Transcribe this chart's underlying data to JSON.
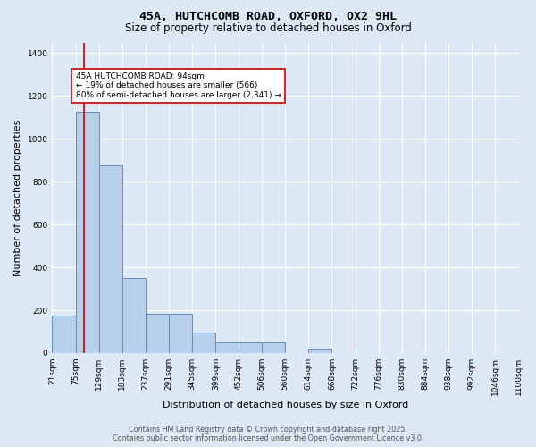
{
  "title_line1": "45A, HUTCHCOMB ROAD, OXFORD, OX2 9HL",
  "title_line2": "Size of property relative to detached houses in Oxford",
  "xlabel": "Distribution of detached houses by size in Oxford",
  "ylabel": "Number of detached properties",
  "bar_edges": [
    21,
    75,
    129,
    183,
    237,
    291,
    345,
    399,
    452,
    506,
    560,
    614,
    668,
    722,
    776,
    830,
    884,
    938,
    992,
    1046,
    1100
  ],
  "bar_heights": [
    175,
    1125,
    875,
    350,
    185,
    185,
    95,
    50,
    50,
    50,
    0,
    22,
    0,
    0,
    0,
    0,
    0,
    0,
    0,
    0
  ],
  "bar_color": "#b8d0ea",
  "bar_edge_color": "#6090bb",
  "bar_linewidth": 0.7,
  "vline_x": 94,
  "vline_color": "#cc0000",
  "vline_linewidth": 1.2,
  "annotation_text": "45A HUTCHCOMB ROAD: 94sqm\n← 19% of detached houses are smaller (566)\n80% of semi-detached houses are larger (2,341) →",
  "annotation_box_color": "#ffffff",
  "annotation_box_edge": "#cc0000",
  "ylim": [
    0,
    1450
  ],
  "yticks": [
    0,
    200,
    400,
    600,
    800,
    1000,
    1200,
    1400
  ],
  "background_color": "#dde8f5",
  "grid_color": "#ffffff",
  "footer_line1": "Contains HM Land Registry data © Crown copyright and database right 2025.",
  "footer_line2": "Contains public sector information licensed under the Open Government Licence v3.0.",
  "title_fontsize": 9.5,
  "subtitle_fontsize": 8.5,
  "annotation_fontsize": 6.5,
  "axis_label_fontsize": 8,
  "tick_fontsize": 6.5,
  "footer_fontsize": 5.8
}
